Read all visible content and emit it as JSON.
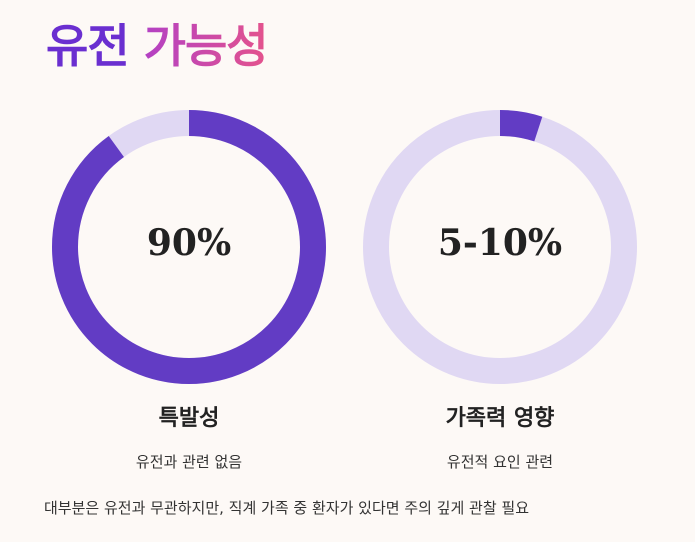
{
  "title": {
    "part1": "유전",
    "part2": "가능성"
  },
  "colors": {
    "accent": "#623cc4",
    "track": "#e0d8f3",
    "title_purple": "#6a2fd0",
    "title_pink": "#e4538c",
    "background": "#fdf9f6"
  },
  "cards": [
    {
      "value_text": "90%",
      "fill_fraction": 0.9,
      "label": "특발성",
      "sublabel": "유전과 관련 없음"
    },
    {
      "value_text": "5-10%",
      "fill_fraction": 0.05,
      "label": "가족력 영향",
      "sublabel": "유전적 요인 관련"
    }
  ],
  "footnote": "대부분은 유전과 무관하지만, 직계 가족 중 환자가 있다면 주의 깊게 관찰 필요"
}
